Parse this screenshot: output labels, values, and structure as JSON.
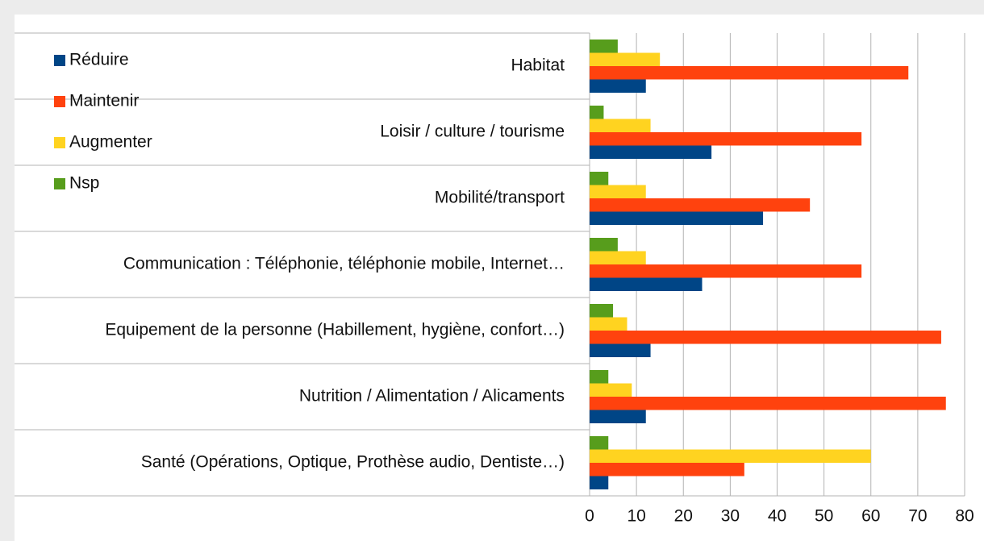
{
  "chart_data": {
    "type": "bar",
    "orientation": "horizontal",
    "categories": [
      "Habitat",
      "Loisir / culture / tourisme",
      "Mobilité/transport",
      "Communication : Téléphonie, téléphonie mobile, Internet…",
      "Equipement de la personne (Habillement, hygiène, confort…)",
      "Nutrition / Alimentation / Alicaments",
      "Santé (Opérations, Optique, Prothèse audio, Dentiste…)"
    ],
    "series": [
      {
        "name": "Réduire",
        "color": "#004586",
        "values": [
          12,
          26,
          37,
          24,
          13,
          12,
          4
        ]
      },
      {
        "name": "Maintenir",
        "color": "#ff420e",
        "values": [
          68,
          58,
          47,
          58,
          75,
          76,
          33
        ]
      },
      {
        "name": "Augmenter",
        "color": "#ffd320",
        "values": [
          15,
          13,
          12,
          12,
          8,
          9,
          60
        ]
      },
      {
        "name": "Nsp",
        "color": "#579d1c",
        "values": [
          6,
          3,
          4,
          6,
          5,
          4,
          4
        ]
      }
    ],
    "xlim": [
      0,
      80
    ],
    "xticks": [
      0,
      10,
      20,
      30,
      40,
      50,
      60,
      70,
      80
    ],
    "grid": true,
    "legend": "top-left"
  }
}
